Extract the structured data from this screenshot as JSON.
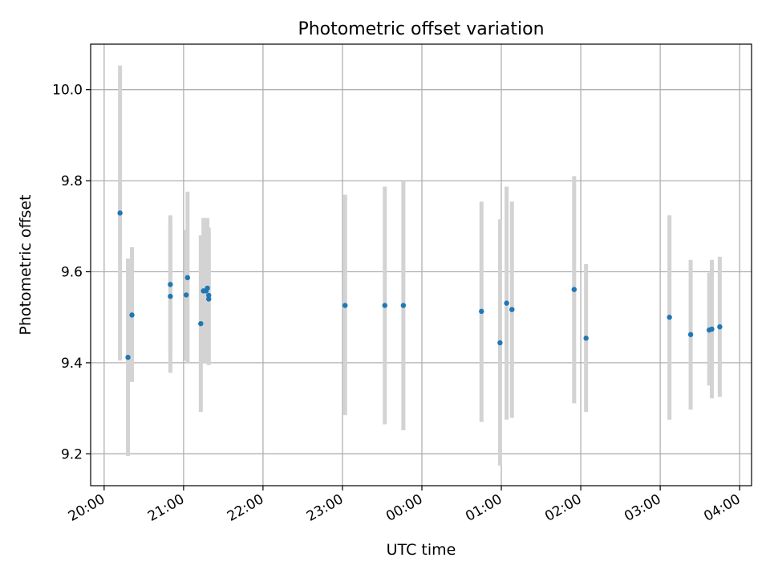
{
  "chart_data": {
    "type": "scatter",
    "title": "Photometric offset variation",
    "xlabel": "UTC time",
    "ylabel": "Photometric offset",
    "grid": true,
    "xlim_hours": [
      -4.17,
      4.15
    ],
    "ylim": [
      9.13,
      10.1
    ],
    "x_ticks": [
      {
        "label": "20:00",
        "h": -4
      },
      {
        "label": "21:00",
        "h": -3
      },
      {
        "label": "22:00",
        "h": -2
      },
      {
        "label": "23:00",
        "h": -1
      },
      {
        "label": "00:00",
        "h": 0
      },
      {
        "label": "01:00",
        "h": 1
      },
      {
        "label": "02:00",
        "h": 2
      },
      {
        "label": "03:00",
        "h": 3
      },
      {
        "label": "04:00",
        "h": 4
      }
    ],
    "y_ticks": [
      {
        "label": "9.2",
        "v": 9.2
      },
      {
        "label": "9.4",
        "v": 9.4
      },
      {
        "label": "9.6",
        "v": 9.6
      },
      {
        "label": "9.8",
        "v": 9.8
      },
      {
        "label": "10.0",
        "v": 10.0
      }
    ],
    "point_color": "#1f77b4",
    "errorbar_color": "#d3d3d3",
    "points": [
      {
        "x": "20:12",
        "y": 9.729,
        "lo": 9.405,
        "hi": 10.053
      },
      {
        "x": "20:18",
        "y": 9.412,
        "lo": 9.195,
        "hi": 9.629
      },
      {
        "x": "20:21",
        "y": 9.505,
        "lo": 9.358,
        "hi": 9.654
      },
      {
        "x": "20:50",
        "y": 9.546,
        "lo": 9.378,
        "hi": 9.713
      },
      {
        "x": "20:50",
        "y": 9.572,
        "lo": 9.42,
        "hi": 9.724
      },
      {
        "x": "21:02",
        "y": 9.549,
        "lo": 9.405,
        "hi": 9.692
      },
      {
        "x": "21:03",
        "y": 9.587,
        "lo": 9.4,
        "hi": 9.776
      },
      {
        "x": "21:13",
        "y": 9.486,
        "lo": 9.292,
        "hi": 9.68
      },
      {
        "x": "21:15",
        "y": 9.558,
        "lo": 9.4,
        "hi": 9.718
      },
      {
        "x": "21:17",
        "y": 9.558,
        "lo": 9.4,
        "hi": 9.718
      },
      {
        "x": "21:18",
        "y": 9.564,
        "lo": 9.41,
        "hi": 9.718
      },
      {
        "x": "21:19",
        "y": 9.548,
        "lo": 9.4,
        "hi": 9.697
      },
      {
        "x": "21:19",
        "y": 9.54,
        "lo": 9.395,
        "hi": 9.686
      },
      {
        "x": "23:02",
        "y": 9.526,
        "lo": 9.285,
        "hi": 9.769
      },
      {
        "x": "23:32",
        "y": 9.526,
        "lo": 9.265,
        "hi": 9.787
      },
      {
        "x": "23:46",
        "y": 9.526,
        "lo": 9.252,
        "hi": 9.8
      },
      {
        "x": "00:45",
        "y": 9.513,
        "lo": 9.27,
        "hi": 9.754
      },
      {
        "x": "00:59",
        "y": 9.444,
        "lo": 9.174,
        "hi": 9.715
      },
      {
        "x": "01:04",
        "y": 9.531,
        "lo": 9.275,
        "hi": 9.787
      },
      {
        "x": "01:08",
        "y": 9.517,
        "lo": 9.279,
        "hi": 9.754
      },
      {
        "x": "01:55",
        "y": 9.561,
        "lo": 9.311,
        "hi": 9.81
      },
      {
        "x": "02:04",
        "y": 9.454,
        "lo": 9.292,
        "hi": 9.617
      },
      {
        "x": "03:07",
        "y": 9.5,
        "lo": 9.275,
        "hi": 9.724
      },
      {
        "x": "03:23",
        "y": 9.462,
        "lo": 9.297,
        "hi": 9.626
      },
      {
        "x": "03:37",
        "y": 9.472,
        "lo": 9.35,
        "hi": 9.598
      },
      {
        "x": "03:39",
        "y": 9.474,
        "lo": 9.322,
        "hi": 9.626
      },
      {
        "x": "03:45",
        "y": 9.479,
        "lo": 9.325,
        "hi": 9.633
      }
    ]
  }
}
